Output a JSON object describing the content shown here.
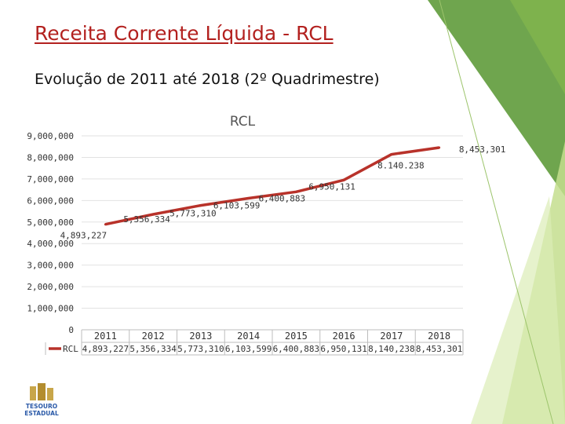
{
  "slide": {
    "title": "Receita Corrente Líquida - RCL",
    "subtitle": "Evolução de 2011 até 2018 (2º Quadrimestre)"
  },
  "logo": {
    "text": "TESOURO ESTADUAL"
  },
  "colors": {
    "accent": "#b3211f",
    "series": "#b8322a",
    "deco_green_dark": "#5f9b3b",
    "deco_green_light": "#c4de8e"
  },
  "chart_data": {
    "type": "line",
    "title": "RCL",
    "categories": [
      "2011",
      "2012",
      "2013",
      "2014",
      "2015",
      "2016",
      "2017",
      "2018"
    ],
    "series": [
      {
        "name": "RCL",
        "values": [
          4893227,
          5356334,
          5773310,
          6103599,
          6400883,
          6950131,
          8140238,
          8453301
        ],
        "data_labels": [
          "4,893,227",
          "5,356,334",
          "5,773,310",
          "6,103,599",
          "6,400,883",
          "6,950,131",
          "8.140.238",
          "8,453,301"
        ],
        "table_labels": [
          "4,893,227",
          "5,356,334",
          "5,773,310",
          "6,103,599",
          "6,400,883",
          "6,950,131",
          "8,140,238",
          "8,453,301"
        ]
      }
    ],
    "ylim": [
      0,
      9000000
    ],
    "yticks": [
      0,
      1000000,
      2000000,
      3000000,
      4000000,
      5000000,
      6000000,
      7000000,
      8000000,
      9000000
    ],
    "ytick_labels": [
      "0",
      "1,000,000",
      "2,000,000",
      "3,000,000",
      "4,000,000",
      "5,000,000",
      "6,000,000",
      "7,000,000",
      "8,000,000",
      "9,000,000"
    ],
    "grid": true,
    "legend": "data-table-below",
    "xlabel": "",
    "ylabel": ""
  }
}
